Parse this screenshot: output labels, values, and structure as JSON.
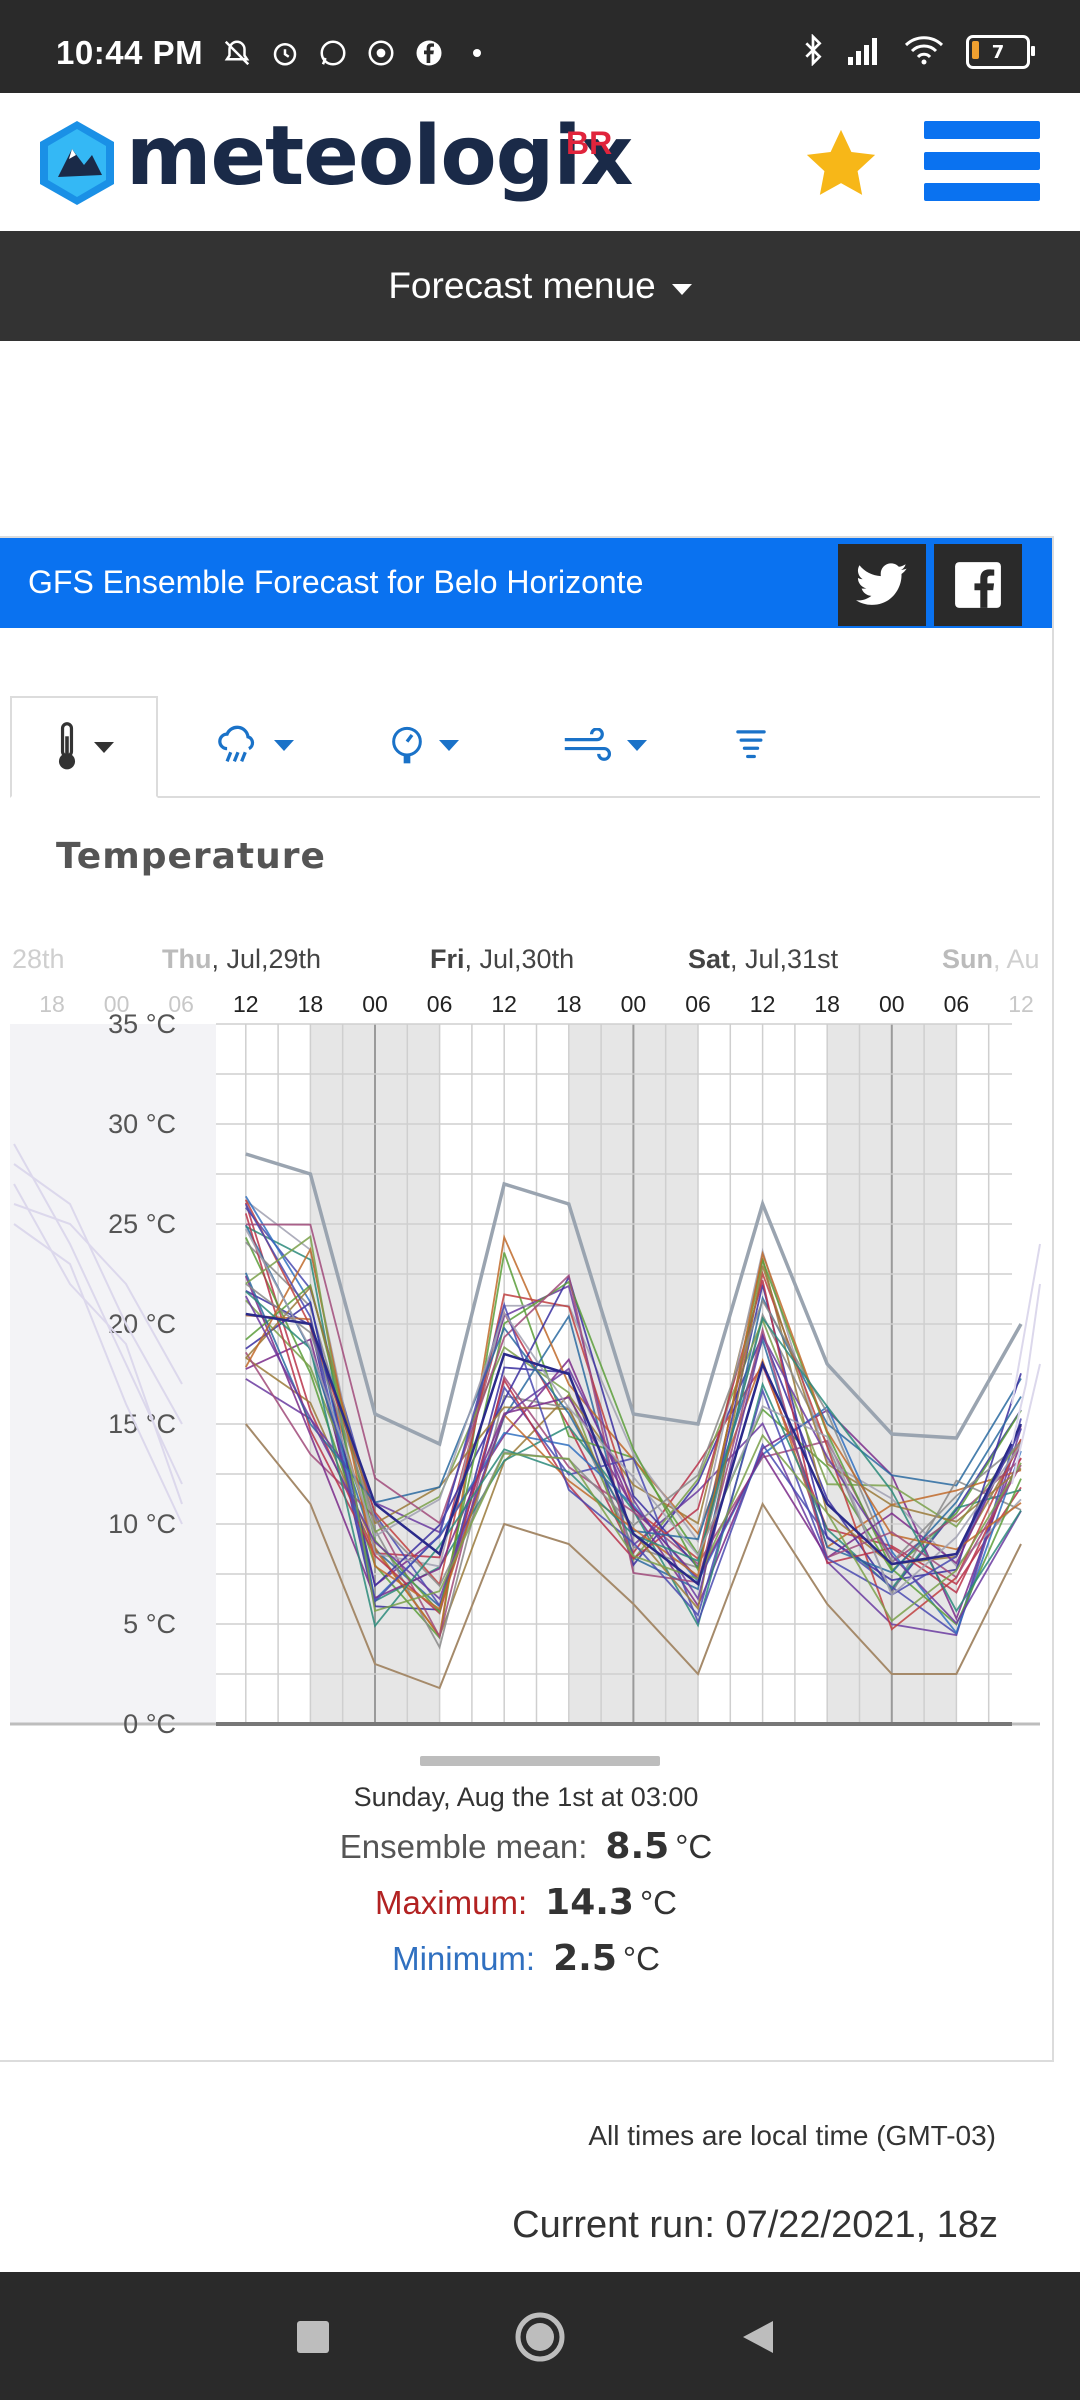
{
  "status_bar": {
    "time": "10:44 PM",
    "battery_level": "7",
    "icons_left": [
      "mute-icon",
      "alarm-icon",
      "whatsapp-icon",
      "chrome-icon",
      "facebook-icon",
      "dot-icon"
    ],
    "icons_right": [
      "bluetooth-icon",
      "signal-icon",
      "wifi-icon",
      "battery-icon"
    ]
  },
  "header": {
    "logo_text": "meteologix",
    "logo_region": "BR",
    "brand_color": "#0a72f0",
    "star_color": "#f7b718"
  },
  "forecast_menu": {
    "label": "Forecast menue"
  },
  "widget": {
    "title": "GFS Ensemble Forecast for Belo Horizonte",
    "tabs": [
      {
        "icon": "thermometer-icon",
        "active": true
      },
      {
        "icon": "rain-cloud-icon",
        "active": false
      },
      {
        "icon": "pressure-gauge-icon",
        "active": false
      },
      {
        "icon": "wind-icon",
        "active": false
      },
      {
        "icon": "tornado-icon",
        "active": false
      }
    ],
    "chart_title": "Temperature"
  },
  "chart_data": {
    "type": "line",
    "title": "Temperature",
    "y_unit": "°C",
    "ylim": [
      0,
      35
    ],
    "y_ticks": [
      "35 °C",
      "30 °C",
      "25 °C",
      "20 °C",
      "15 °C",
      "10 °C",
      "5 °C",
      "0 °C"
    ],
    "days": [
      {
        "bold": "",
        "rest": "28th"
      },
      {
        "bold": "Thu",
        "rest": ", Jul,29th"
      },
      {
        "bold": "Fri",
        "rest": ", Jul,30th"
      },
      {
        "bold": "Sat",
        "rest": ", Jul,31st"
      },
      {
        "bold": "Sun",
        "rest": ", Au"
      }
    ],
    "x_hours": [
      "18",
      "00",
      "06",
      "12",
      "18",
      "00",
      "06",
      "12",
      "18",
      "00",
      "06",
      "12",
      "18",
      "00",
      "06",
      "12"
    ],
    "grid": true,
    "series_summary": {
      "x": [
        "Thu 12",
        "Thu 18",
        "Fri 00",
        "Fri 06",
        "Fri 12",
        "Fri 18",
        "Sat 00",
        "Sat 06",
        "Sat 12",
        "Sat 18",
        "Sun 00",
        "Sun 06",
        "Sun 12"
      ],
      "max": [
        28.5,
        27.5,
        15.5,
        14.0,
        27.0,
        26.0,
        15.5,
        15.0,
        26.0,
        18.0,
        14.5,
        14.3,
        20.0
      ],
      "min": [
        15.0,
        11.0,
        3.0,
        1.8,
        10.0,
        9.0,
        6.0,
        2.5,
        11.0,
        6.0,
        2.5,
        2.5,
        9.0
      ],
      "mean": [
        20.5,
        20.0,
        11.0,
        8.5,
        18.5,
        17.5,
        9.5,
        7.0,
        18.0,
        11.0,
        8.0,
        8.5,
        15.0
      ]
    }
  },
  "tooltip": {
    "date": "Sunday, Aug the 1st at 03:00",
    "mean_label": "Ensemble mean:",
    "mean_value": "8.5",
    "max_label": "Maximum:",
    "max_value": "14.3",
    "min_label": "Minimum:",
    "min_value": "2.5",
    "unit": "°C"
  },
  "footer": {
    "timezone_note": "All times are local time (GMT-03)",
    "current_run": "Current run: 07/22/2021, 18z"
  }
}
